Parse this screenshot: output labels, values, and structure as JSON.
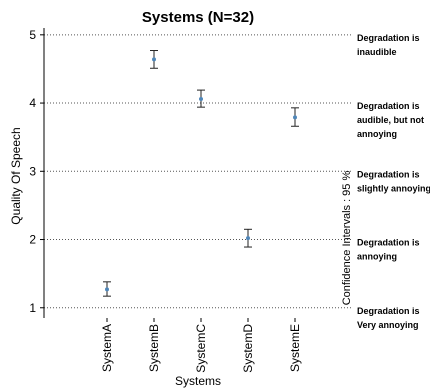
{
  "chart_data": {
    "type": "scatter",
    "title": "Systems (N=32)",
    "xlabel": "Systems",
    "ylabel": "Quality Of Speech",
    "categories": [
      "SystemA",
      "SystemB",
      "SystemC",
      "SystemD",
      "SystemE"
    ],
    "series": [
      {
        "values": [
          1.27,
          4.64,
          4.06,
          2.02,
          3.79
        ],
        "ci_lower": [
          1.17,
          4.51,
          3.94,
          1.89,
          3.66
        ],
        "ci_upper": [
          1.38,
          4.77,
          4.19,
          2.15,
          3.93
        ]
      }
    ],
    "ylim": [
      0.85,
      5.1
    ],
    "yticks": [
      1,
      2,
      3,
      4,
      5
    ],
    "grid": "horizontal-dotted",
    "right_annotations": [
      {
        "y": 5,
        "lines": [
          "Degradation is",
          "inaudible"
        ]
      },
      {
        "y": 4,
        "lines": [
          "Degradation is",
          "audible, but not",
          "annoying"
        ]
      },
      {
        "y": 3,
        "lines": [
          "Degradation is",
          "slightly annoying"
        ]
      },
      {
        "y": 2,
        "lines": [
          "Degradation is",
          "annoying"
        ]
      },
      {
        "y": 1,
        "lines": [
          "Degradation is",
          "Very annoying"
        ]
      }
    ],
    "ci_label": "Confidence Intervals : 95  %",
    "colors": {
      "point": "#4f86b8",
      "errorbar": "#222222",
      "grid": "#555555"
    }
  }
}
